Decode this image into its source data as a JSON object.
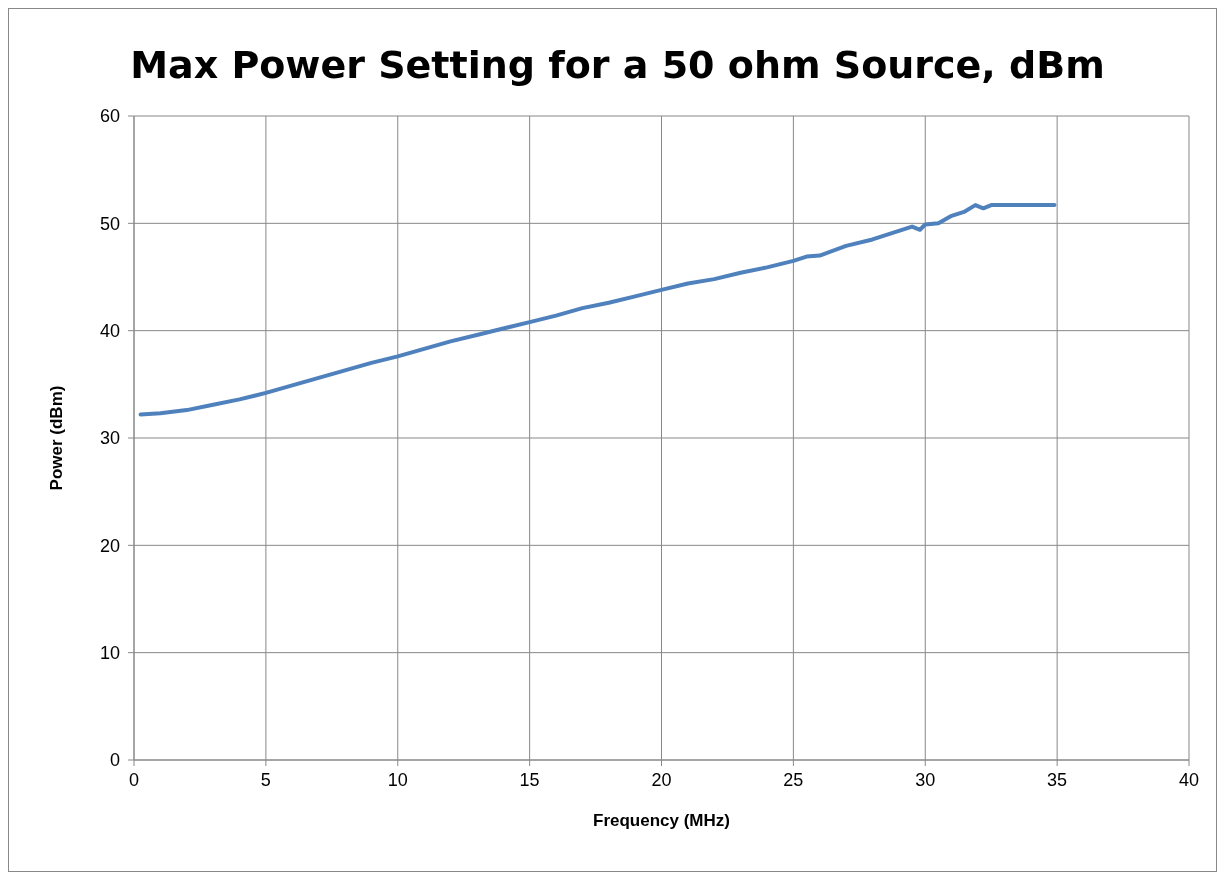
{
  "chart_data": {
    "type": "line",
    "title": "Max Power Setting for a 50 ohm Source, dBm",
    "xlabel": "Frequency (MHz)",
    "ylabel": "Power (dBm)",
    "xlim": [
      0,
      40
    ],
    "xticks": [
      0,
      5,
      10,
      15,
      20,
      25,
      30,
      35,
      40
    ],
    "ylim": [
      0,
      60
    ],
    "yticks": [
      0,
      10,
      20,
      30,
      40,
      50,
      60
    ],
    "grid": true,
    "marker": "none",
    "line_style": "solid",
    "series": [
      {
        "color": "#4f81bd",
        "x": [
          0.25,
          1,
          2,
          3,
          4,
          5,
          6,
          7,
          8,
          9,
          10,
          11,
          12,
          13,
          14,
          15,
          16,
          17,
          18,
          19,
          20,
          21,
          22,
          23,
          24,
          25,
          25.5,
          26,
          27,
          28,
          29,
          29.5,
          29.8,
          30,
          30.5,
          31,
          31.5,
          31.9,
          32.2,
          32.5,
          34,
          34.9
        ],
        "values": [
          32.2,
          32.3,
          32.6,
          33.1,
          33.6,
          34.2,
          34.9,
          35.6,
          36.3,
          37.0,
          37.6,
          38.3,
          39.0,
          39.6,
          40.2,
          40.8,
          41.4,
          42.1,
          42.6,
          43.2,
          43.8,
          44.4,
          44.8,
          45.4,
          45.9,
          46.5,
          46.9,
          47.0,
          47.9,
          48.5,
          49.3,
          49.7,
          49.4,
          49.9,
          50.0,
          50.7,
          51.1,
          51.7,
          51.4,
          51.7,
          51.7,
          51.7
        ]
      }
    ]
  }
}
